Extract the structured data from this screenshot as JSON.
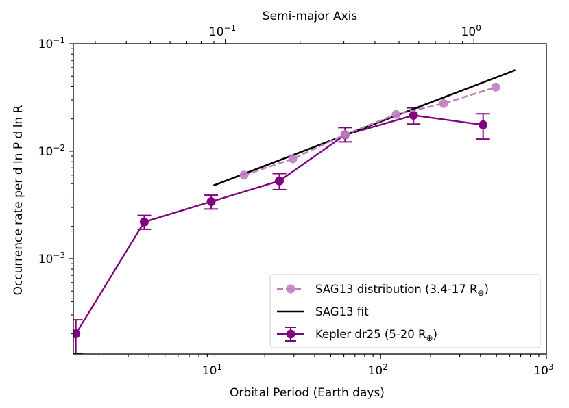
{
  "chart_data": {
    "type": "line",
    "xlabel": "Orbital Period (Earth days)",
    "ylabel": "Occurrence rate per d ln P d ln R",
    "top_xlabel": "Semi-major Axis",
    "xscale": "log",
    "yscale": "log",
    "xlim": [
      1.4,
      1000
    ],
    "ylim": [
      0.00013,
      0.1
    ],
    "x_ticks": [
      {
        "value": 10,
        "base": "10",
        "exp": "1"
      },
      {
        "value": 100,
        "base": "10",
        "exp": "2"
      },
      {
        "value": 1000,
        "base": "10",
        "exp": "3"
      }
    ],
    "y_ticks": [
      {
        "value": 0.001,
        "base": "10",
        "exp": "−3"
      },
      {
        "value": 0.01,
        "base": "10",
        "exp": "−2"
      },
      {
        "value": 0.1,
        "base": "10",
        "exp": "−1"
      }
    ],
    "top_ticks": [
      {
        "au": 0.1,
        "base": "10",
        "exp": "−1"
      },
      {
        "au": 1,
        "base": "10",
        "exp": "0"
      }
    ],
    "series": [
      {
        "name": "Kepler dr25 (5-20 R",
        "name_suffix": "⊕",
        "name_end": ")",
        "color": "#800080",
        "style": "solid-markers-errorbars",
        "x": [
          1.45,
          3.75,
          9.5,
          24.5,
          61,
          158,
          415
        ],
        "y": [
          0.0002,
          0.0022,
          0.0034,
          0.0053,
          0.0142,
          0.0216,
          0.0176
        ],
        "err_low": [
          7e-05,
          0.00032,
          0.0005,
          0.0009,
          0.002,
          0.0037,
          0.0046
        ],
        "err_high": [
          7e-05,
          0.00033,
          0.0005,
          0.0009,
          0.0024,
          0.0037,
          0.0047
        ]
      },
      {
        "name": "SAG13 fit",
        "color": "#000000",
        "style": "solid",
        "x": [
          9.8,
          650
        ],
        "y": [
          0.0048,
          0.057
        ]
      },
      {
        "name": "SAG13 distribution (3.4-17 R",
        "name_suffix": "⊕",
        "name_end": ")",
        "color": "#bf7fbf",
        "style": "dashed-markers",
        "x": [
          15,
          29.5,
          61,
          124,
          240,
          495
        ],
        "y": [
          0.006,
          0.0085,
          0.0143,
          0.022,
          0.0278,
          0.0395
        ]
      }
    ],
    "legend_position": "lower-right"
  }
}
